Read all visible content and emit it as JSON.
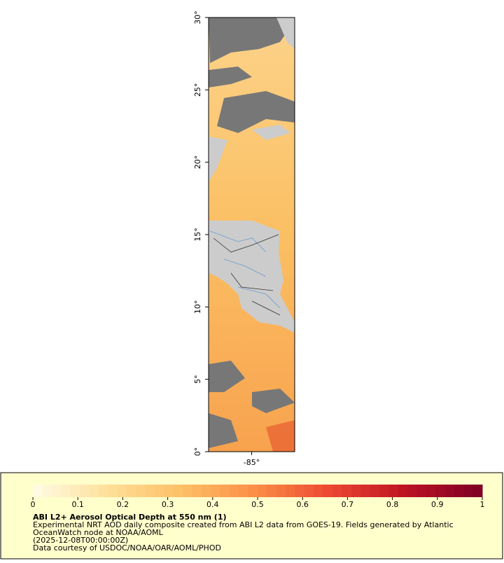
{
  "map": {
    "latlim": [
      0,
      30
    ],
    "lonlim": [
      -88,
      -82
    ],
    "lat_ticks": [
      {
        "value": 0,
        "label": "0°"
      },
      {
        "value": 5,
        "label": "5°"
      },
      {
        "value": 10,
        "label": "10°"
      },
      {
        "value": 15,
        "label": "15°"
      },
      {
        "value": 20,
        "label": "20°"
      },
      {
        "value": 25,
        "label": "25°"
      },
      {
        "value": 30,
        "label": "30°"
      }
    ],
    "lon_ticks": [
      {
        "value": -85,
        "label": "-85°"
      }
    ]
  },
  "colorbar": {
    "range": [
      0,
      1
    ],
    "ticks": [
      0,
      0.1,
      0.2,
      0.3,
      0.4,
      0.5,
      0.6,
      0.7,
      0.8,
      0.9,
      1
    ]
  },
  "legend": {
    "title": "ABI L2+ Aerosol Optical Depth at 550 nm (1)",
    "lines": [
      "Experimental NRT AOD daily composite created from ABI L2 data from GOES-19. Fields generated by Atlantic",
      "OceanWatch node at NOAA/AOML",
      "(2025-12-08T00:00:00Z)",
      "Data courtesy of USDOC/NOAA/OAR/AOML/PHOD"
    ]
  }
}
